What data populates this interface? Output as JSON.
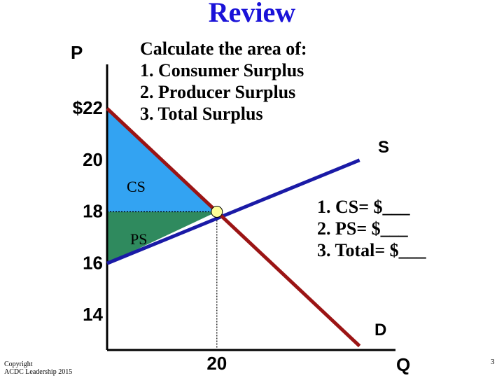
{
  "slide": {
    "title": "Review",
    "instructions": [
      "Calculate the area of:",
      "1.  Consumer Surplus",
      "2.  Producer Surplus",
      "3.  Total Surplus"
    ],
    "answers": [
      "1.  CS= $___",
      "2.  PS= $___",
      "3.  Total= $___"
    ],
    "copyright": [
      "Copyright",
      "ACDC Leadership 2015"
    ],
    "page_number": "3"
  },
  "chart_data": {
    "type": "area",
    "y_axis_label": "P",
    "x_axis_label": "Q",
    "y_ticks": [
      "$22",
      "20",
      "18",
      "16",
      "14"
    ],
    "y_tick_values": [
      22,
      20,
      18,
      16,
      14
    ],
    "x_ticks": [
      "20"
    ],
    "x_tick_values": [
      20
    ],
    "ylim": [
      12,
      22
    ],
    "xlim": [
      0,
      50
    ],
    "demand": {
      "label": "D",
      "x": [
        0,
        46
      ],
      "y": [
        22,
        12.8
      ]
    },
    "supply": {
      "label": "S",
      "x": [
        0,
        46
      ],
      "y": [
        16,
        20
      ]
    },
    "equilibrium": {
      "x": 20,
      "y": 18
    },
    "regions": [
      {
        "label": "CS",
        "color": "#33a3f2"
      },
      {
        "label": "PS",
        "color": "#2f8a5e"
      }
    ],
    "colors": {
      "demand": "#9b1414",
      "supply": "#1a1aa6",
      "point": "#ffff99",
      "axis": "#000000"
    }
  }
}
